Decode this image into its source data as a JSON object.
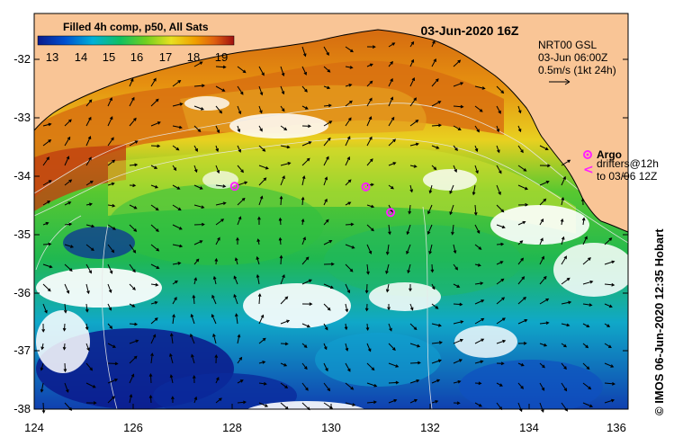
{
  "map": {
    "colorbar_title": "Filled 4h comp, p50, All Sats",
    "colorbar_ticks": [
      "13",
      "14",
      "15",
      "16",
      "17",
      "18",
      "19"
    ],
    "timestamp": "03-Jun-2020 16Z",
    "current_legend": {
      "line1": "NRT00 GSL",
      "line2": "03-Jun 06:00Z",
      "line3": "0.5m/s (1kt 24h)"
    },
    "argo_label": "Argo",
    "drifters_line1": "drifters@12h",
    "drifters_line2": "to 03/06 12Z",
    "credit": "© IMOS 06-Jun-2020 12:35 Hobart",
    "lat_ticks": [
      "-32",
      "-33",
      "-34",
      "-35",
      "-36",
      "-37",
      "-38"
    ],
    "lon_ticks": [
      "124",
      "126",
      "128",
      "130",
      "132",
      "134",
      "136"
    ],
    "argo_floats": [
      {
        "lon": 128.05,
        "lat": -34.17
      },
      {
        "lon": 130.7,
        "lat": -34.18
      },
      {
        "lon": 131.2,
        "lat": -34.62
      }
    ],
    "colors": {
      "land": "#f9c596",
      "argo": "#ff20ff",
      "sst_scale": [
        "#0a1a8c",
        "#0050d0",
        "#00b0d8",
        "#10c060",
        "#70d020",
        "#e8e020",
        "#f0a000",
        "#e06010",
        "#a01010"
      ]
    }
  }
}
